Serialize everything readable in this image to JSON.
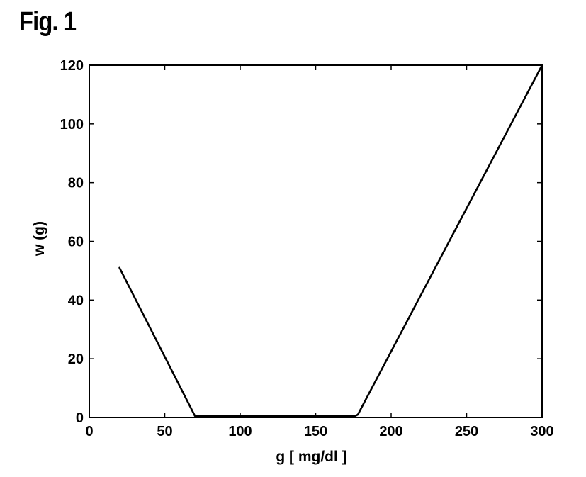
{
  "figure_label": "Fig. 1",
  "chart_data": {
    "type": "line",
    "xlabel": "g [ mg/dl ]",
    "ylabel": "w (g)",
    "xlim": [
      0,
      300
    ],
    "ylim": [
      0,
      120
    ],
    "xticks": [
      0,
      50,
      100,
      150,
      200,
      250,
      300
    ],
    "yticks": [
      0,
      20,
      40,
      60,
      80,
      100,
      120
    ],
    "grid": false,
    "series": [
      {
        "x": [
          20,
          70,
          176,
          178,
          180,
          300
        ],
        "y": [
          51,
          0.5,
          0.5,
          1,
          3,
          120
        ]
      }
    ],
    "line_color": "#000000"
  }
}
